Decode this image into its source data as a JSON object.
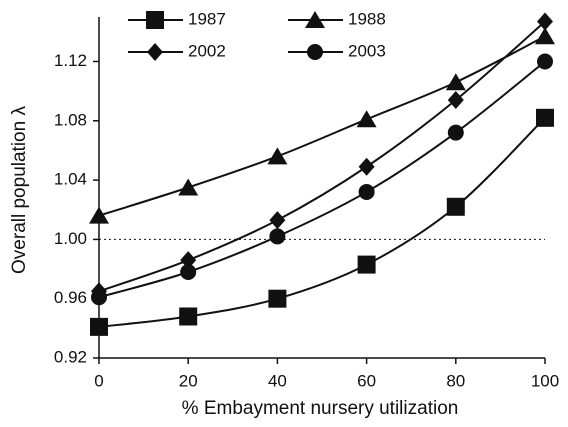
{
  "chart_data": {
    "type": "line",
    "x_label": "% Embayment nursery utilization",
    "y_label": "Overall population λ",
    "x": [
      0,
      20,
      40,
      60,
      80,
      100
    ],
    "series": [
      {
        "name": "1987",
        "color": "#111111",
        "marker": "square",
        "values": [
          0.941,
          0.948,
          0.96,
          0.983,
          1.022,
          1.082
        ]
      },
      {
        "name": "1988",
        "color": "#111111",
        "marker": "triangle",
        "values": [
          1.016,
          1.035,
          1.056,
          1.081,
          1.106,
          1.137
        ]
      },
      {
        "name": "2002",
        "color": "#111111",
        "marker": "diamond",
        "values": [
          0.965,
          0.986,
          1.013,
          1.049,
          1.094,
          1.147
        ]
      },
      {
        "name": "2003",
        "color": "#111111",
        "marker": "circle",
        "values": [
          0.961,
          0.978,
          1.002,
          1.032,
          1.072,
          1.12
        ]
      }
    ],
    "xlim": [
      0,
      100
    ],
    "xticks": [
      0,
      20,
      40,
      60,
      80,
      100
    ],
    "ylim": [
      0.92,
      1.15
    ],
    "yticks": [
      0.92,
      0.96,
      {
        "value": 1.0,
        "label": "1.00"
      },
      1.04,
      1.08,
      1.12
    ],
    "hline": 1.0,
    "grid": false
  }
}
